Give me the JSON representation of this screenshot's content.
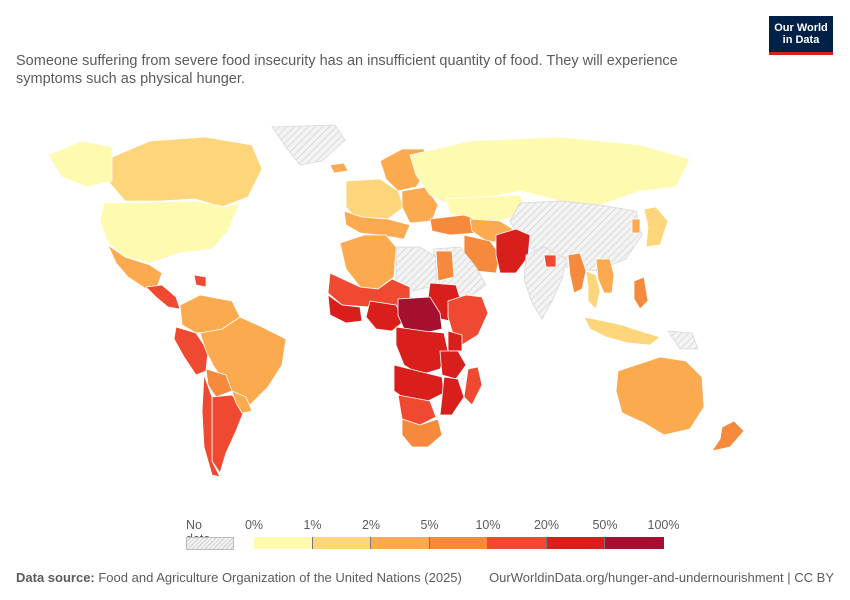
{
  "subtitle": "Someone suffering from severe food insecurity has an insufficient quantity of food. They will experience symptoms such as physical hunger.",
  "logo": {
    "line1": "Our World",
    "line2": "in Data"
  },
  "legend": {
    "no_data_label": "No data",
    "ticks": [
      "0%",
      "1%",
      "2%",
      "5%",
      "10%",
      "20%",
      "50%",
      "100%"
    ],
    "bin_colors": [
      "#fefaaf",
      "#fdd67b",
      "#fbaa4f",
      "#f68a3c",
      "#ef4a31",
      "#d81f1c",
      "#a60f2f"
    ]
  },
  "footer": {
    "source_label": "Data source:",
    "source_text": " Food and Agriculture Organization of the United Nations (2025)",
    "link_text": "OurWorldinData.org/hunger-and-undernourishment",
    "license_text": " | CC BY"
  },
  "colors": {
    "no_data_fill": "#efefef",
    "border": "#ffffff",
    "brand": "#002147",
    "brand_accent": "#ce261e"
  },
  "chart_data": {
    "type": "choropleth",
    "scale_bins_percent": [
      0,
      1,
      2,
      5,
      10,
      20,
      50,
      100
    ],
    "regions": [
      {
        "id": "greenland",
        "bin": -1
      },
      {
        "id": "canada",
        "bin": 1
      },
      {
        "id": "alaska",
        "bin": 0
      },
      {
        "id": "usa",
        "bin": 0
      },
      {
        "id": "mexico",
        "bin": 2
      },
      {
        "id": "central-america",
        "bin": 4
      },
      {
        "id": "haiti",
        "bin": 4
      },
      {
        "id": "colombia-venezuela",
        "bin": 2
      },
      {
        "id": "peru-ecuador",
        "bin": 4
      },
      {
        "id": "brazil",
        "bin": 2
      },
      {
        "id": "bolivia",
        "bin": 3
      },
      {
        "id": "argentina",
        "bin": 4
      },
      {
        "id": "chile",
        "bin": 4
      },
      {
        "id": "paraguay-uruguay",
        "bin": 2
      },
      {
        "id": "iceland",
        "bin": 2
      },
      {
        "id": "europe-north",
        "bin": 2
      },
      {
        "id": "europe-west",
        "bin": 1
      },
      {
        "id": "europe-south",
        "bin": 2
      },
      {
        "id": "eastern-europe",
        "bin": 2
      },
      {
        "id": "russia",
        "bin": 0
      },
      {
        "id": "kazakhstan",
        "bin": 0
      },
      {
        "id": "mongolia-china",
        "bin": -1
      },
      {
        "id": "japan",
        "bin": 1
      },
      {
        "id": "korea",
        "bin": 2
      },
      {
        "id": "turkey-caucasus",
        "bin": 3
      },
      {
        "id": "central-asia",
        "bin": 2
      },
      {
        "id": "iran",
        "bin": 3
      },
      {
        "id": "saudi-arabia",
        "bin": -1
      },
      {
        "id": "yemen",
        "bin": -1
      },
      {
        "id": "afghanistan-pakistan",
        "bin": 5
      },
      {
        "id": "india",
        "bin": -1
      },
      {
        "id": "bangladesh",
        "bin": 4
      },
      {
        "id": "myanmar",
        "bin": 3
      },
      {
        "id": "thailand",
        "bin": 1
      },
      {
        "id": "vietnam-laos",
        "bin": 2
      },
      {
        "id": "malaysia-indonesia",
        "bin": 1
      },
      {
        "id": "philippines",
        "bin": 3
      },
      {
        "id": "png",
        "bin": -1
      },
      {
        "id": "australia",
        "bin": 2
      },
      {
        "id": "new-zealand",
        "bin": 3
      },
      {
        "id": "morocco-algeria",
        "bin": 2
      },
      {
        "id": "libya",
        "bin": -1
      },
      {
        "id": "egypt",
        "bin": 3
      },
      {
        "id": "sudan",
        "bin": 5
      },
      {
        "id": "west-africa-sahel",
        "bin": 4
      },
      {
        "id": "west-africa-coast",
        "bin": 5
      },
      {
        "id": "nigeria",
        "bin": 5
      },
      {
        "id": "chad-car",
        "bin": 6
      },
      {
        "id": "ethiopia-somalia",
        "bin": 4
      },
      {
        "id": "kenya",
        "bin": 5
      },
      {
        "id": "drc-congo",
        "bin": 5
      },
      {
        "id": "tanzania",
        "bin": 5
      },
      {
        "id": "angola-zambia",
        "bin": 5
      },
      {
        "id": "mozambique-malawi",
        "bin": 5
      },
      {
        "id": "namibia-botswana",
        "bin": 4
      },
      {
        "id": "south-africa",
        "bin": 3
      },
      {
        "id": "madagascar",
        "bin": 4
      }
    ]
  }
}
